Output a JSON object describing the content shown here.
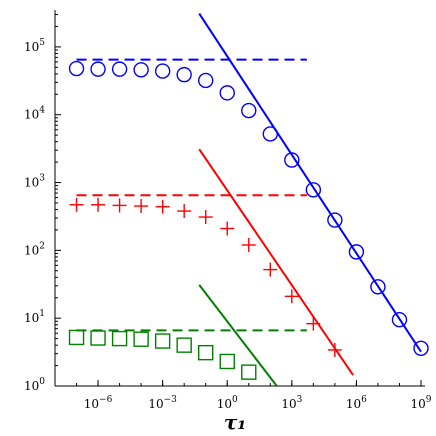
{
  "chart_data": {
    "type": "scatter",
    "xlabel": "τ₁",
    "ylabel": "",
    "x_scale": "log",
    "y_scale": "log",
    "xlim": [
      1e-08,
      1000000000.0
    ],
    "ylim": [
      1,
      350000
    ],
    "x_ticks": [
      {
        "value": 1e-06,
        "base": "10",
        "exp": "−6"
      },
      {
        "value": 0.001,
        "base": "10",
        "exp": "−3"
      },
      {
        "value": 1,
        "base": "10",
        "exp": "0"
      },
      {
        "value": 1000.0,
        "base": "10",
        "exp": "3"
      },
      {
        "value": 1000000.0,
        "base": "10",
        "exp": "6"
      },
      {
        "value": 1000000000.0,
        "base": "10",
        "exp": "9"
      }
    ],
    "y_ticks": [
      {
        "value": 1,
        "base": "10",
        "exp": "0"
      },
      {
        "value": 10,
        "base": "10",
        "exp": "1"
      },
      {
        "value": 100,
        "base": "10",
        "exp": "2"
      },
      {
        "value": 1000,
        "base": "10",
        "exp": "3"
      },
      {
        "value": 10000,
        "base": "10",
        "exp": "4"
      },
      {
        "value": 100000,
        "base": "10",
        "exp": "5"
      }
    ],
    "series": [
      {
        "marker": "circle",
        "color": "#0000ff",
        "x": [
          1e-07,
          1e-06,
          1e-05,
          0.0001,
          0.001,
          0.01,
          0.1,
          1,
          10,
          100,
          1000,
          10000.0,
          100000.0,
          1000000.0,
          10000000.0,
          100000000.0,
          1000000000.0
        ],
        "y": [
          48000,
          47000,
          47000,
          46000,
          44000,
          39000,
          32000,
          21000,
          11500,
          5200,
          2150,
          780,
          280,
          95,
          29,
          9.5,
          3.6
        ],
        "plateau": {
          "y": 65000,
          "x_from": 1e-07,
          "x_to": 5000
        },
        "power_law": {
          "x1": 0.05,
          "y1": 310000,
          "x2": 1000000000.0,
          "y2": 3.2
        }
      },
      {
        "marker": "plus",
        "color": "#ff0000",
        "x": [
          1e-07,
          1e-06,
          1e-05,
          0.0001,
          0.001,
          0.01,
          0.1,
          1,
          10,
          100,
          1000,
          10000.0,
          100000.0
        ],
        "y": [
          470,
          470,
          460,
          450,
          440,
          380,
          310,
          210,
          120,
          52,
          21,
          8.3,
          3.4
        ],
        "plateau": {
          "y": 650,
          "x_from": 1e-07,
          "x_to": 5000
        },
        "power_law": {
          "x1": 0.05,
          "y1": 3100,
          "x2": 700000.0,
          "y2": 1.45
        }
      },
      {
        "marker": "square",
        "color": "#008000",
        "x": [
          1e-07,
          1e-06,
          1e-05,
          0.0001,
          0.001,
          0.01,
          0.1,
          1,
          10
        ],
        "y": [
          5.2,
          5.1,
          5.0,
          4.9,
          4.6,
          4.0,
          3.1,
          2.3,
          1.6
        ],
        "plateau": {
          "y": 6.6,
          "x_from": 1e-07,
          "x_to": 5000
        },
        "power_law": {
          "x1": 0.05,
          "y1": 31,
          "x2": 200,
          "y2": 1.0
        }
      }
    ]
  }
}
